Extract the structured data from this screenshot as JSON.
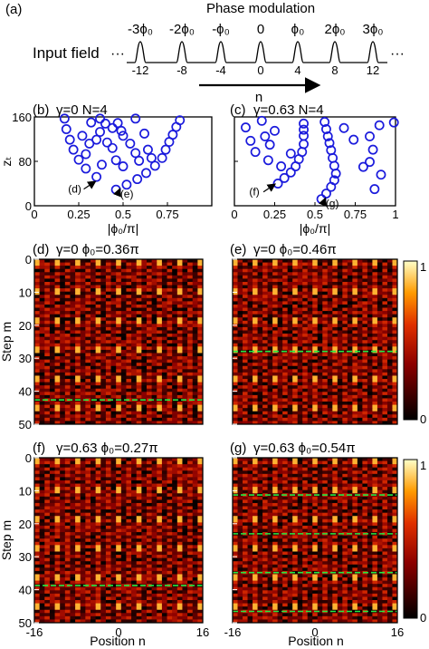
{
  "panel_a": {
    "label": "(a)",
    "title": "Phase modulation",
    "input_label": "Input field",
    "phases": [
      "-3ϕ₀",
      "-2ϕ₀",
      "-ϕ₀",
      "0",
      "ϕ₀",
      "2ϕ₀",
      "3ϕ₀"
    ],
    "positions": [
      "-12",
      "-8",
      "-4",
      "0",
      "4",
      "8",
      "12"
    ],
    "ellipsis": "···",
    "arrow_label": "n"
  },
  "chart_data": [
    {
      "type": "scatter",
      "panel": "(b)",
      "title": "γ=0 N=4",
      "ylabel": "zₜ",
      "xlabel": "|ϕ₀/π|",
      "xlim": [
        0,
        1
      ],
      "ylim": [
        0,
        160
      ],
      "xticks": [
        "0",
        "0.25",
        "0.5",
        "0.75"
      ],
      "yticks": [
        "0",
        "80",
        "160"
      ],
      "annotations": [
        {
          "text": "(d)",
          "x": 0.36,
          "y": 43
        },
        {
          "text": "(e)",
          "x": 0.46,
          "y": 29
        }
      ],
      "points": [
        [
          0.17,
          157
        ],
        [
          0.18,
          138
        ],
        [
          0.2,
          119
        ],
        [
          0.22,
          101
        ],
        [
          0.25,
          83
        ],
        [
          0.29,
          67
        ],
        [
          0.35,
          52
        ],
        [
          0.32,
          150
        ],
        [
          0.27,
          126
        ],
        [
          0.37,
          157
        ],
        [
          0.4,
          148
        ],
        [
          0.37,
          133
        ],
        [
          0.31,
          112
        ],
        [
          0.44,
          140
        ],
        [
          0.35,
          119
        ],
        [
          0.29,
          93
        ],
        [
          0.41,
          114
        ],
        [
          0.44,
          104
        ],
        [
          0.46,
          82
        ],
        [
          0.38,
          74
        ],
        [
          0.5,
          71
        ],
        [
          0.46,
          29
        ],
        [
          0.52,
          38
        ],
        [
          0.58,
          48
        ],
        [
          0.63,
          59
        ],
        [
          0.68,
          72
        ],
        [
          0.72,
          86
        ],
        [
          0.74,
          101
        ],
        [
          0.76,
          115
        ],
        [
          0.78,
          128
        ],
        [
          0.8,
          142
        ],
        [
          0.82,
          154
        ],
        [
          0.57,
          157
        ],
        [
          0.5,
          126
        ],
        [
          0.62,
          130
        ],
        [
          0.54,
          112
        ],
        [
          0.64,
          101
        ],
        [
          0.57,
          95
        ],
        [
          0.66,
          86
        ],
        [
          0.59,
          81
        ],
        [
          0.47,
          149
        ],
        [
          0.49,
          135
        ]
      ]
    },
    {
      "type": "scatter",
      "panel": "(c)",
      "title": "γ=0.63 N=4",
      "xlabel": "|ϕ₀/π|",
      "xlim": [
        0,
        1
      ],
      "ylim": [
        0,
        160
      ],
      "xticks": [
        "0",
        "0.25",
        "0.5",
        "0.75",
        "1"
      ],
      "annotations": [
        {
          "text": "(f)",
          "x": 0.27,
          "y": 38
        },
        {
          "text": "(g)",
          "x": 0.54,
          "y": 12
        }
      ],
      "points": [
        [
          0.07,
          141
        ],
        [
          0.1,
          117
        ],
        [
          0.13,
          97
        ],
        [
          0.17,
          153
        ],
        [
          0.19,
          125
        ],
        [
          0.21,
          82
        ],
        [
          0.25,
          135
        ],
        [
          0.29,
          71
        ],
        [
          0.22,
          110
        ],
        [
          0.35,
          94
        ],
        [
          0.27,
          40
        ],
        [
          0.31,
          50
        ],
        [
          0.35,
          60
        ],
        [
          0.38,
          71
        ],
        [
          0.4,
          84
        ],
        [
          0.42,
          97
        ],
        [
          0.43,
          111
        ],
        [
          0.43,
          126
        ],
        [
          0.43,
          137
        ],
        [
          0.43,
          148
        ],
        [
          0.54,
          12
        ],
        [
          0.57,
          22
        ],
        [
          0.6,
          34
        ],
        [
          0.62,
          46
        ],
        [
          0.63,
          58
        ],
        [
          0.62,
          72
        ],
        [
          0.61,
          86
        ],
        [
          0.6,
          100
        ],
        [
          0.59,
          113
        ],
        [
          0.58,
          125
        ],
        [
          0.57,
          138
        ],
        [
          0.56,
          151
        ],
        [
          0.68,
          140
        ],
        [
          0.74,
          119
        ],
        [
          0.84,
          125
        ],
        [
          0.86,
          101
        ],
        [
          0.8,
          70
        ],
        [
          0.87,
          30
        ],
        [
          0.91,
          56
        ],
        [
          0.84,
          79
        ],
        [
          0.99,
          150
        ],
        [
          0.9,
          145
        ]
      ]
    },
    {
      "type": "heatmap",
      "panel": "(d)",
      "title": "γ=0 ϕ₀=0.36π",
      "ylabel": "Step m",
      "yticks": [
        "0",
        "10",
        "20",
        "30",
        "40",
        "50"
      ],
      "xrange": [
        -16,
        16
      ],
      "yrange": [
        0,
        50
      ],
      "revival_steps": [
        43
      ]
    },
    {
      "type": "heatmap",
      "panel": "(e)",
      "title": "γ=0 ϕ₀=0.46π",
      "xrange": [
        -16,
        16
      ],
      "yrange": [
        0,
        50
      ],
      "revival_steps": [
        28
      ],
      "colorbar": [
        "1",
        "0"
      ]
    },
    {
      "type": "heatmap",
      "panel": "(f)",
      "title": "γ=0.63 ϕ₀=0.27π",
      "ylabel": "Step m",
      "xlabel": "Position n",
      "yticks": [
        "0",
        "10",
        "20",
        "30",
        "40",
        "50"
      ],
      "xticks": [
        "-16",
        "0",
        "16"
      ],
      "xrange": [
        -16,
        16
      ],
      "yrange": [
        0,
        50
      ],
      "revival_steps": [
        39
      ]
    },
    {
      "type": "heatmap",
      "panel": "(g)",
      "title": "γ=0.63 ϕ₀=0.54π",
      "xlabel": "Position n",
      "xticks": [
        "-16",
        "0",
        "16"
      ],
      "xrange": [
        -16,
        16
      ],
      "yrange": [
        0,
        50
      ],
      "revival_steps": [
        11,
        23,
        35,
        47
      ],
      "colorbar": [
        "1",
        "0"
      ]
    }
  ]
}
